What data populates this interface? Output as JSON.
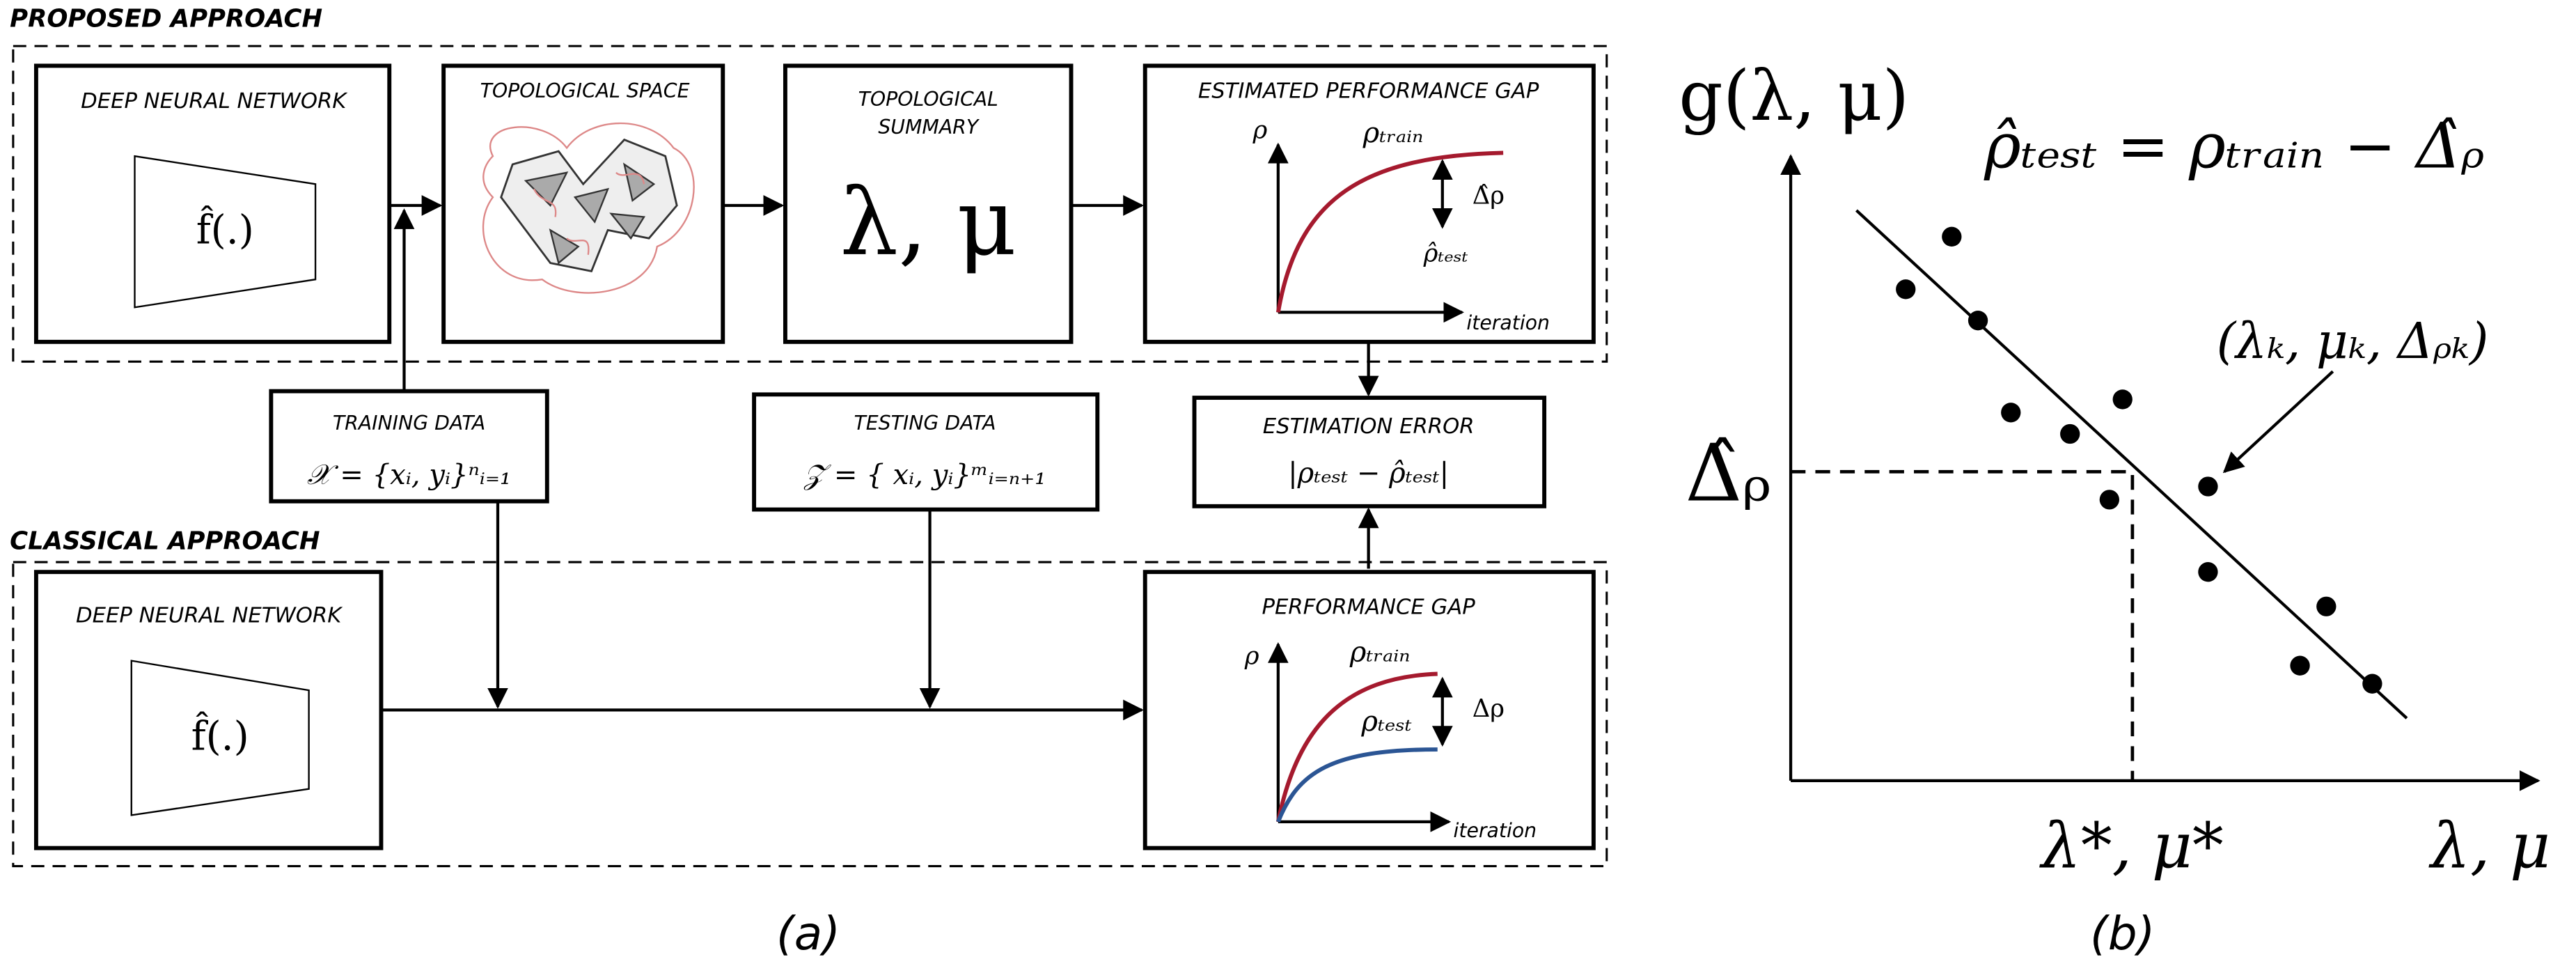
{
  "panel_a": {
    "proposed": {
      "title": "PROPOSED APPROACH",
      "dnn": {
        "title": "DEEP NEURAL NETWORK",
        "function": "f̂(.)"
      },
      "topological_space": {
        "title": "TOPOLOGICAL SPACE"
      },
      "topological_summary": {
        "title_line1": "TOPOLOGICAL",
        "title_line2": "SUMMARY",
        "symbol": "λ, μ"
      },
      "estimated_gap": {
        "title": "ESTIMATED  PERFORMANCE GAP",
        "y_label": "ρ",
        "train_label": "ρₜᵣₐᵢₙ",
        "gap_label": "Δ̂ρ",
        "test_label": "ρ̂ₜₑₛₜ",
        "x_label": "iteration"
      }
    },
    "training_data": {
      "title": "TRAINING DATA",
      "formula": "𝒳 = {xᵢ, yᵢ}ⁿᵢ₌₁"
    },
    "testing_data": {
      "title": "TESTING DATA",
      "formula": "𝒵 = { xᵢ, yᵢ}ᵐᵢ₌ₙ₊₁"
    },
    "estimation_error": {
      "title": "ESTIMATION ERROR",
      "formula": "|ρₜₑₛₜ − ρ̂ₜₑₛₜ|"
    },
    "classical": {
      "title": "CLASSICAL APPROACH",
      "dnn": {
        "title": "DEEP NEURAL NETWORK",
        "function": "f̂(.)"
      },
      "gap": {
        "title": "PERFORMANCE GAP",
        "y_label": "ρ",
        "train_label": "ρₜᵣₐᵢₙ",
        "test_label": "ρₜₑₛₜ",
        "gap_label": "Δρ",
        "x_label": "iteration"
      }
    },
    "caption": "(a)"
  },
  "panel_b": {
    "y_label": "g(λ, μ)",
    "equation": "ρ̂ₜₑₛₜ = ρₜᵣₐᵢₙ − Δ̂ᵨ",
    "point_label": "(λₖ, μₖ, Δᵨₖ)",
    "delta_hat": "Δ̂ᵨ",
    "x_star": "λ*, μ*",
    "x_label": "λ, μ",
    "caption": "(b)"
  }
}
